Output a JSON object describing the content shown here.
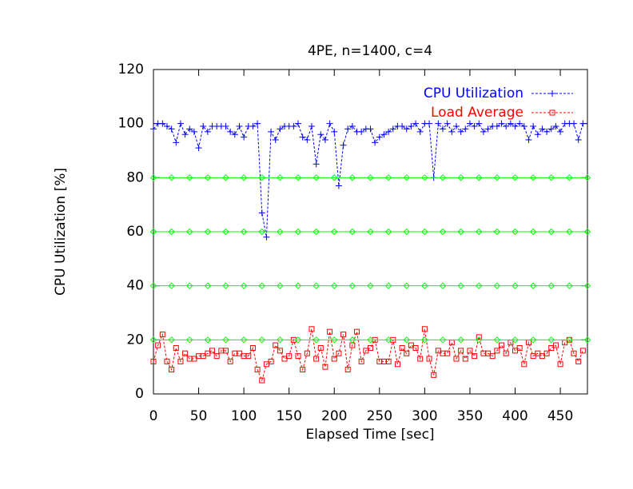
{
  "chart_data": {
    "type": "line",
    "title": "4PE, n=1400, c=4",
    "x_label": "Elapsed Time [sec]",
    "y_label": "CPU Utilization [%]",
    "x": [
      0,
      5,
      10,
      15,
      20,
      25,
      30,
      35,
      40,
      45,
      50,
      55,
      60,
      65,
      70,
      75,
      80,
      85,
      90,
      95,
      100,
      105,
      110,
      115,
      120,
      125,
      130,
      135,
      140,
      145,
      150,
      155,
      160,
      165,
      170,
      175,
      180,
      185,
      190,
      195,
      200,
      205,
      210,
      215,
      220,
      225,
      230,
      235,
      240,
      245,
      250,
      255,
      260,
      265,
      270,
      275,
      280,
      285,
      290,
      295,
      300,
      305,
      310,
      315,
      320,
      325,
      330,
      335,
      340,
      345,
      350,
      355,
      360,
      365,
      370,
      375,
      380,
      385,
      390,
      395,
      400,
      405,
      410,
      415,
      420,
      425,
      430,
      435,
      440,
      445,
      450,
      455,
      460,
      465,
      470,
      475
    ],
    "series": [
      {
        "name": "CPU Utilization",
        "color": "#0000ff",
        "marker": "plus",
        "dashed": true,
        "values": [
          98,
          100,
          100,
          99,
          98,
          93,
          100,
          96,
          98,
          97,
          91,
          99,
          97,
          99,
          99,
          99,
          99,
          97,
          96,
          99,
          95,
          99,
          99,
          100,
          67,
          58,
          97,
          94,
          98,
          99,
          99,
          99,
          100,
          95,
          94,
          99,
          85,
          96,
          94,
          100,
          97,
          77,
          92,
          98,
          99,
          97,
          97,
          98,
          98,
          93,
          95,
          96,
          97,
          98,
          99,
          99,
          98,
          99,
          100,
          97,
          100,
          100,
          80,
          100,
          98,
          100,
          97,
          99,
          97,
          98,
          100,
          99,
          100,
          97,
          98,
          99,
          99,
          100,
          99,
          100,
          99,
          100,
          99,
          94,
          99,
          96,
          98,
          97,
          98,
          99,
          97,
          100,
          100,
          100,
          94,
          100
        ]
      },
      {
        "name": "Load Average",
        "color": "#ff0000",
        "marker": "square",
        "dashed": true,
        "values": [
          12,
          18,
          22,
          12,
          9,
          17,
          12,
          15,
          13,
          13,
          14,
          14,
          15,
          16,
          14,
          16,
          16,
          12,
          15,
          15,
          14,
          14,
          17,
          9,
          5,
          11,
          12,
          18,
          16,
          13,
          14,
          20,
          14,
          9,
          15,
          24,
          13,
          17,
          10,
          23,
          13,
          15,
          22,
          9,
          18,
          23,
          12,
          16,
          17,
          20,
          12,
          12,
          12,
          20,
          11,
          17,
          15,
          18,
          17,
          13,
          24,
          13,
          7,
          16,
          15,
          15,
          19,
          13,
          16,
          13,
          16,
          14,
          21,
          15,
          15,
          14,
          16,
          18,
          15,
          19,
          16,
          17,
          11,
          19,
          14,
          15,
          14,
          15,
          17,
          18,
          11,
          19,
          20,
          15,
          12,
          16
        ]
      },
      {
        "color": "#00ff00",
        "marker": "diamond",
        "dashed": false,
        "x": [
          0,
          20,
          40,
          60,
          80,
          100,
          120,
          140,
          160,
          180,
          200,
          220,
          240,
          260,
          280,
          300,
          320,
          340,
          360,
          380,
          400,
          420,
          440,
          460,
          480
        ],
        "values": [
          80,
          80,
          80,
          80,
          80,
          80,
          80,
          80,
          80,
          80,
          80,
          80,
          80,
          80,
          80,
          80,
          80,
          80,
          80,
          80,
          80,
          80,
          80,
          80,
          80
        ]
      },
      {
        "color": "#00ff00",
        "marker": "diamond",
        "dashed": false,
        "x": [
          0,
          20,
          40,
          60,
          80,
          100,
          120,
          140,
          160,
          180,
          200,
          220,
          240,
          260,
          280,
          300,
          320,
          340,
          360,
          380,
          400,
          420,
          440,
          460,
          480
        ],
        "values": [
          60,
          60,
          60,
          60,
          60,
          60,
          60,
          60,
          60,
          60,
          60,
          60,
          60,
          60,
          60,
          60,
          60,
          60,
          60,
          60,
          60,
          60,
          60,
          60,
          60
        ]
      },
      {
        "color": "#00ff00",
        "marker": "diamond",
        "dashed": false,
        "x": [
          0,
          20,
          40,
          60,
          80,
          100,
          120,
          140,
          160,
          180,
          200,
          220,
          240,
          260,
          280,
          300,
          320,
          340,
          360,
          380,
          400,
          420,
          440,
          460,
          480
        ],
        "values": [
          40,
          40,
          40,
          40,
          40,
          40,
          40,
          40,
          40,
          40,
          40,
          40,
          40,
          40,
          40,
          40,
          40,
          40,
          40,
          40,
          40,
          40,
          40,
          40,
          40
        ]
      },
      {
        "color": "#00ff00",
        "marker": "diamond",
        "dashed": false,
        "x": [
          0,
          20,
          40,
          60,
          80,
          100,
          120,
          140,
          160,
          180,
          200,
          220,
          240,
          260,
          280,
          300,
          320,
          340,
          360,
          380,
          400,
          420,
          440,
          460,
          480
        ],
        "values": [
          20,
          20,
          20,
          20,
          20,
          20,
          20,
          20,
          20,
          20,
          20,
          20,
          20,
          20,
          20,
          20,
          20,
          20,
          20,
          20,
          20,
          20,
          20,
          20,
          20
        ]
      }
    ],
    "xlim": [
      0,
      480
    ],
    "xticks": [
      0,
      50,
      100,
      150,
      200,
      250,
      300,
      350,
      400,
      450
    ],
    "ylim": [
      0,
      120
    ],
    "yticks": [
      0,
      20,
      40,
      60,
      80,
      100,
      120
    ],
    "legend": "top-right",
    "grid": false
  }
}
